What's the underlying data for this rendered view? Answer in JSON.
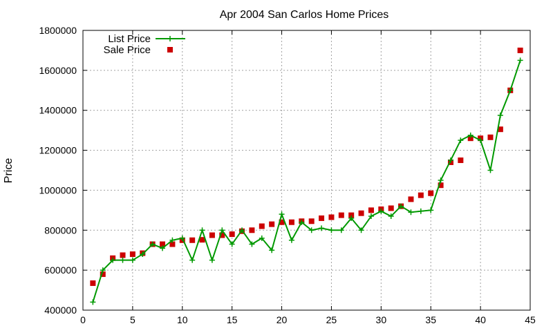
{
  "chart_data": {
    "type": "line",
    "title": "Apr 2004 San Carlos Home Prices",
    "xlabel": "",
    "ylabel": "Price",
    "xlim": [
      0,
      45
    ],
    "ylim": [
      400000,
      1800000
    ],
    "x_ticks": [
      0,
      5,
      10,
      15,
      20,
      25,
      30,
      35,
      40,
      45
    ],
    "y_ticks": [
      400000,
      600000,
      800000,
      1000000,
      1200000,
      1400000,
      1600000,
      1800000
    ],
    "grid": true,
    "legend_position": "top-left",
    "series": [
      {
        "name": "List Price",
        "style": "lines+points",
        "color": "#009900",
        "x": [
          1,
          2,
          3,
          4,
          5,
          6,
          7,
          8,
          9,
          10,
          11,
          12,
          13,
          14,
          15,
          16,
          17,
          18,
          19,
          20,
          21,
          22,
          23,
          24,
          25,
          26,
          27,
          28,
          29,
          30,
          31,
          32,
          33,
          34,
          35,
          36,
          37,
          38,
          39,
          40,
          41,
          42,
          43,
          44
        ],
        "values": [
          440000,
          600000,
          650000,
          650000,
          650000,
          680000,
          730000,
          710000,
          750000,
          760000,
          650000,
          800000,
          650000,
          800000,
          730000,
          800000,
          730000,
          760000,
          700000,
          880000,
          750000,
          840000,
          800000,
          810000,
          800000,
          800000,
          860000,
          800000,
          870000,
          895000,
          870000,
          920000,
          890000,
          895000,
          900000,
          1050000,
          1150000,
          1250000,
          1275000,
          1250000,
          1100000,
          1375000,
          1500000,
          1650000
        ]
      },
      {
        "name": "Sale Price",
        "style": "points",
        "color": "#cc0000",
        "x": [
          1,
          2,
          3,
          4,
          5,
          6,
          7,
          8,
          9,
          10,
          11,
          12,
          13,
          14,
          15,
          16,
          17,
          18,
          19,
          20,
          21,
          22,
          23,
          24,
          25,
          26,
          27,
          28,
          29,
          30,
          31,
          32,
          33,
          34,
          35,
          36,
          37,
          38,
          39,
          40,
          41,
          42,
          43,
          44
        ],
        "values": [
          535000,
          580000,
          660000,
          675000,
          680000,
          685000,
          730000,
          730000,
          730000,
          750000,
          750000,
          752000,
          775000,
          775000,
          780000,
          795000,
          800000,
          820000,
          830000,
          840000,
          840000,
          845000,
          845000,
          860000,
          865000,
          875000,
          875000,
          885000,
          900000,
          905000,
          910000,
          920000,
          955000,
          975000,
          985000,
          1025000,
          1140000,
          1150000,
          1260000,
          1260000,
          1265000,
          1305000,
          1500000,
          1700000
        ]
      }
    ]
  }
}
